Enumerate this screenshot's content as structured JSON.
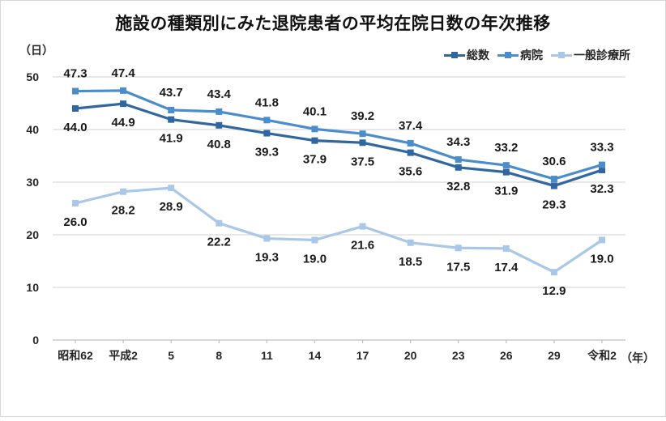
{
  "chart": {
    "title": "施設の種類別にみた退院患者の平均在院日数の年次推移",
    "y_unit": "（日）",
    "x_unit": "（年）"
  },
  "chart_data": {
    "type": "line",
    "title": "施設の種類別にみた退院患者の平均在院日数の年次推移",
    "xlabel": "（年）",
    "ylabel": "（日）",
    "categories": [
      "昭和62",
      "平成2",
      "5",
      "8",
      "11",
      "14",
      "17",
      "20",
      "23",
      "26",
      "29",
      "令和2"
    ],
    "series": [
      {
        "name": "総数",
        "color": "#31679e",
        "label_position": "below",
        "values": [
          44.0,
          44.9,
          41.9,
          40.8,
          39.3,
          37.9,
          37.5,
          35.6,
          32.8,
          31.9,
          29.3,
          32.3
        ]
      },
      {
        "name": "病院",
        "color": "#4b8ccb",
        "label_position": "above",
        "values": [
          47.3,
          47.4,
          43.7,
          43.4,
          41.8,
          40.1,
          39.2,
          37.4,
          34.3,
          33.2,
          30.6,
          33.3
        ]
      },
      {
        "name": "一般診療所",
        "color": "#aac7e8",
        "label_position": "below",
        "values": [
          26.0,
          28.2,
          28.9,
          22.2,
          19.3,
          19.0,
          21.6,
          18.5,
          17.5,
          17.4,
          12.9,
          19.0
        ]
      }
    ],
    "ylim": [
      0,
      50
    ],
    "yticks": [
      0,
      10,
      20,
      30,
      40,
      50
    ],
    "grid": "horizontal",
    "data_labels": true,
    "legend_position": "top-right",
    "marker": "square",
    "colors": {
      "gridline": "#d9d9d9",
      "axis_line": "#bfbfbf",
      "label_text": "#1a1a1a",
      "tick_text": "#262626"
    }
  }
}
